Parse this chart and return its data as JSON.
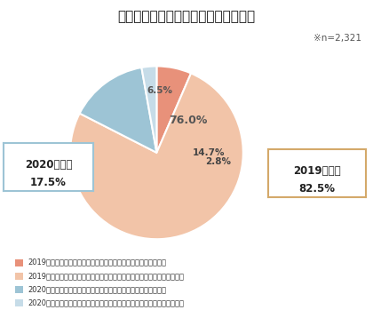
{
  "title": "現在おもに使用している車の購入時期",
  "note": "×n=2,321",
  "slices": [
    6.5,
    76.0,
    14.7,
    2.8
  ],
  "colors": [
    "#E8917A",
    "#F2C4A8",
    "#9DC4D5",
    "#C6DCE8"
  ],
  "labels_on_pie": [
    "6.5%",
    "76.0%",
    "14.7%",
    "2.8%"
  ],
  "label_2019": "2019年以前\n82.5%",
  "label_2020": "2020年以降\n17.5%",
  "legend_labels": [
    "2019年以前（新型コロナウイルス感染拡大前）に初めて購入した",
    "2019年以前（新型コロナウイルス感染拡大前）にほかの車から買い替えた",
    "2020年以降（新型コロナウイルス感染拡大後）に初めて購入した",
    "2020年以降（新型コロナウイルス感染拡大後）にほかの車から買い替えた"
  ],
  "legend_colors": [
    "#E8917A",
    "#F2C4A8",
    "#9DC4D5",
    "#C6DCE8"
  ],
  "bg_color": "#FFFFFF"
}
